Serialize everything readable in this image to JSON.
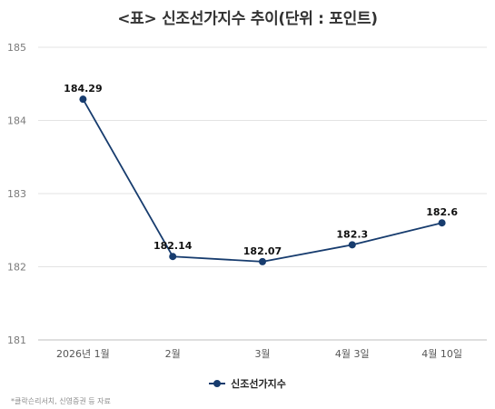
{
  "chart_data": {
    "type": "line",
    "title": "<표> 신조선가지수 추이(단위 : 포인트)",
    "categories": [
      "2026년 1월",
      "2월",
      "3월",
      "4월 3일",
      "4월 10일"
    ],
    "series": [
      {
        "name": "신조선가지수",
        "values": [
          184.29,
          182.14,
          182.07,
          182.3,
          182.6
        ],
        "labels": [
          "184.29",
          "182.14",
          "182.07",
          "182.3",
          "182.6"
        ],
        "color": "#173c6e"
      }
    ],
    "ylim": [
      181,
      185
    ],
    "yticks": [
      "181",
      "182",
      "183",
      "184",
      "185"
    ],
    "grid": "horizontal",
    "legend": "bottom-center"
  },
  "source_note": "*클락슨리서치, 신영증권 등 자료"
}
